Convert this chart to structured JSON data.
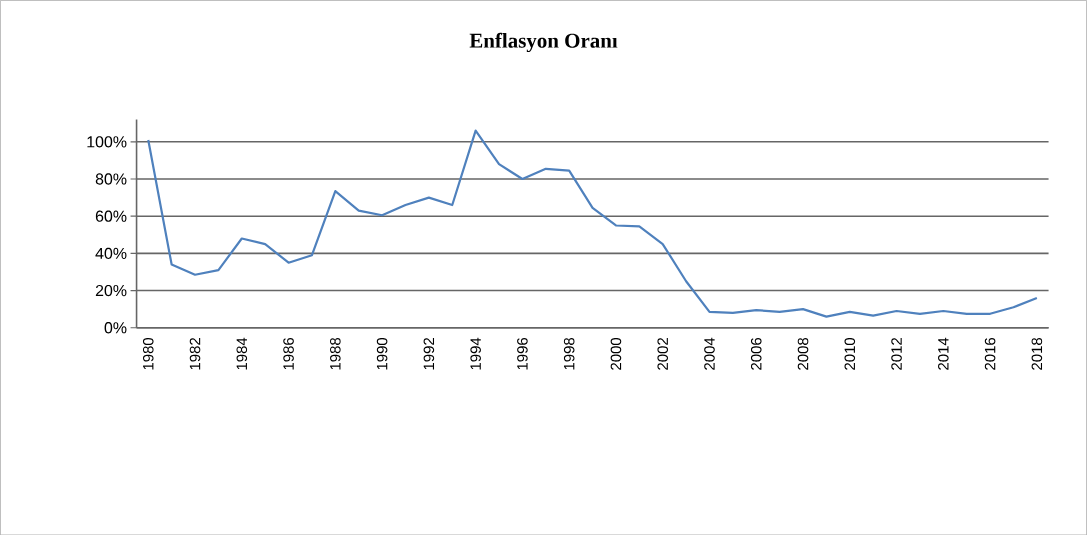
{
  "chart_data": {
    "type": "line",
    "title": "Enflasyon Oranı",
    "categories": [
      "1980",
      null,
      "1982",
      null,
      "1984",
      null,
      "1986",
      null,
      "1988",
      null,
      "1990",
      null,
      "1992",
      null,
      "1994",
      null,
      "1996",
      null,
      "1998",
      null,
      "2000",
      null,
      "2002",
      null,
      "2004",
      null,
      "2006",
      null,
      "2008",
      null,
      "2010",
      null,
      "2012",
      null,
      "2014",
      null,
      "2016",
      null,
      "2018"
    ],
    "series": [
      {
        "color": "#4f81bd",
        "values": [
          101,
          34,
          28.5,
          31,
          48,
          45,
          35,
          39,
          73.5,
          63,
          60.5,
          66,
          70,
          66,
          106,
          88,
          80,
          85.5,
          84.5,
          64.5,
          55,
          54.5,
          45,
          25,
          8.5,
          8,
          9.5,
          8.5,
          10,
          6,
          8.5,
          6.5,
          9,
          7.5,
          9,
          7.5,
          7.5,
          11,
          16
        ]
      }
    ],
    "ylim": [
      0,
      112
    ],
    "yticks": [
      {
        "value": 0,
        "label": "0%"
      },
      {
        "value": 20,
        "label": "20%"
      },
      {
        "value": 40,
        "label": "40%"
      },
      {
        "value": 60,
        "label": "60%"
      },
      {
        "value": 80,
        "label": "80%"
      },
      {
        "value": 100,
        "label": "100%"
      }
    ],
    "grid": "y",
    "marker": "none",
    "line_style": "solid"
  }
}
